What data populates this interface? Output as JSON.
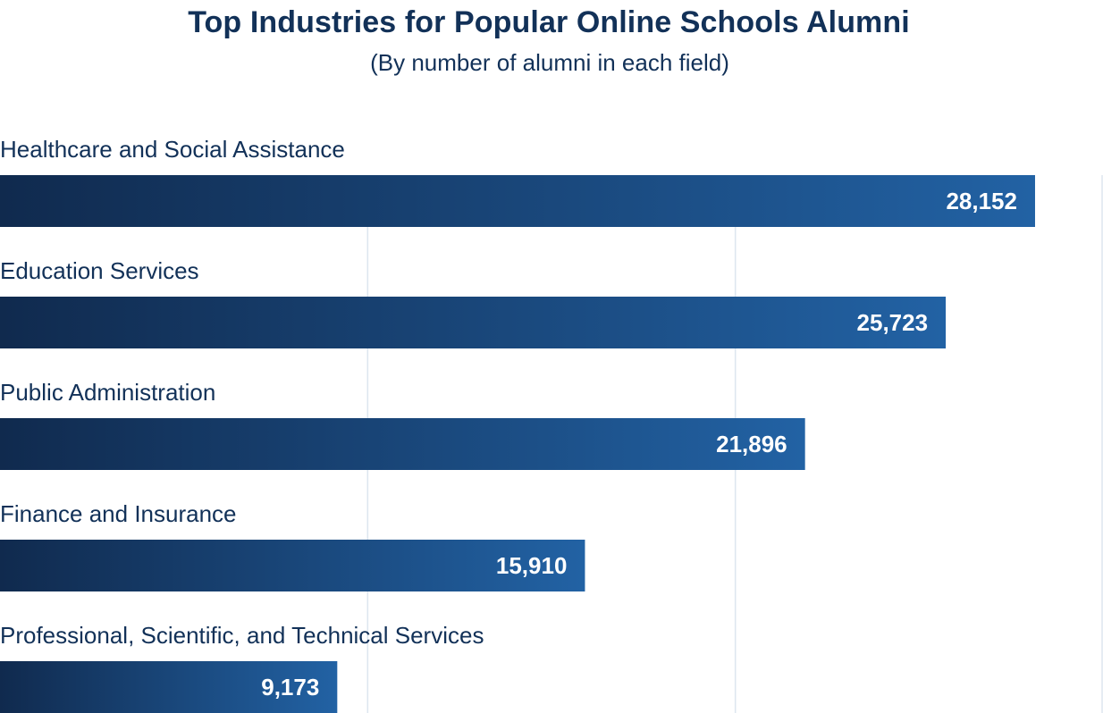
{
  "header": {
    "title": "Top Industries for Popular Online Schools Alumni",
    "subtitle": "(By number of alumni in each field)"
  },
  "colors": {
    "bar_start": "#102a4e",
    "bar_end": "#2262a4",
    "gridline": "#dde6ef",
    "text": "#123158",
    "value_text": "#ffffff"
  },
  "chart_data": {
    "type": "bar",
    "orientation": "horizontal",
    "title": "Top Industries for Popular Online Schools Alumni",
    "subtitle": "(By number of alumni in each field)",
    "categories": [
      "Healthcare and Social Assistance",
      "Education Services",
      "Public Administration",
      "Finance and Insurance",
      "Professional, Scientific, and Technical Services"
    ],
    "values": [
      28152,
      25723,
      21896,
      15910,
      9173
    ],
    "value_labels": [
      "28,152",
      "25,723",
      "21,896",
      "15,910",
      "9,173"
    ],
    "xlim": [
      0,
      30000
    ],
    "gridlines": [
      10000,
      20000,
      30000
    ],
    "grid": true,
    "legend": "none"
  }
}
